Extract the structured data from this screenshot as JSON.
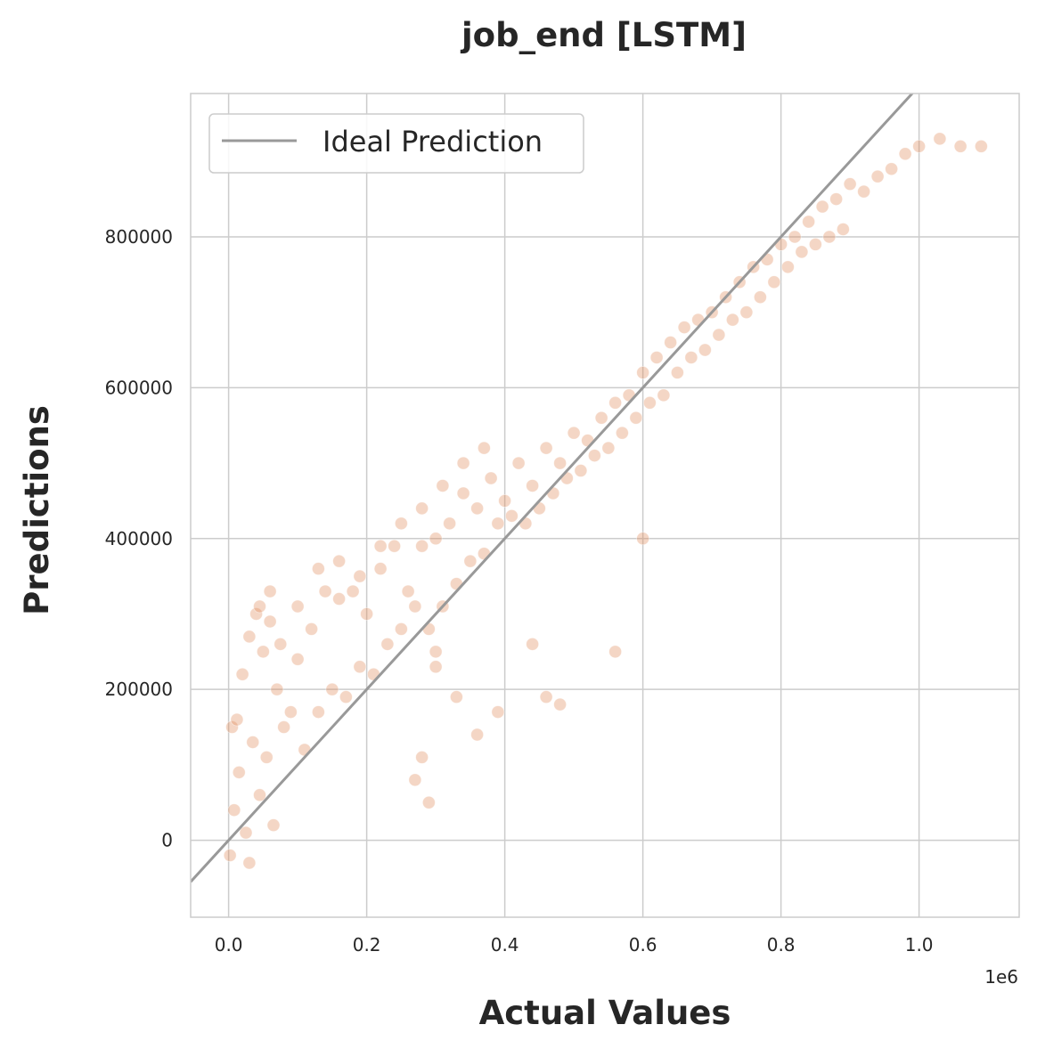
{
  "chart_data": {
    "type": "scatter",
    "title": "job_end [LSTM]",
    "xlabel": "Actual Values",
    "ylabel": "Predictions",
    "x_offset_label": "1e6",
    "xlim": [
      -55000,
      1145000
    ],
    "ylim": [
      -102000,
      990000
    ],
    "x_ticks": [
      0,
      200000,
      400000,
      600000,
      800000,
      1000000
    ],
    "x_tick_labels": [
      "0.0",
      "0.2",
      "0.4",
      "0.6",
      "0.8",
      "1.0"
    ],
    "y_ticks": [
      0,
      200000,
      400000,
      600000,
      800000
    ],
    "y_tick_labels": [
      "0",
      "200000",
      "400000",
      "600000",
      "800000"
    ],
    "grid": true,
    "legend": {
      "position": "top-left",
      "entries": [
        "Ideal Prediction"
      ]
    },
    "colors": {
      "points": "#e08a5a",
      "ideal_line": "#999999",
      "grid": "#cccccc",
      "spine": "#cccccc"
    },
    "series": [
      {
        "name": "Ideal Prediction",
        "kind": "line",
        "x": [
          -55000,
          1145000
        ],
        "y": [
          -55000,
          1145000
        ]
      },
      {
        "name": "predictions",
        "kind": "scatter",
        "x": [
          2000,
          5000,
          8000,
          12000,
          15000,
          20000,
          25000,
          30000,
          35000,
          40000,
          45000,
          50000,
          55000,
          60000,
          65000,
          70000,
          80000,
          90000,
          100000,
          110000,
          120000,
          130000,
          140000,
          150000,
          160000,
          170000,
          180000,
          190000,
          200000,
          210000,
          220000,
          230000,
          240000,
          250000,
          260000,
          270000,
          280000,
          290000,
          300000,
          310000,
          320000,
          330000,
          340000,
          350000,
          360000,
          370000,
          380000,
          390000,
          400000,
          410000,
          420000,
          430000,
          440000,
          450000,
          460000,
          470000,
          480000,
          490000,
          500000,
          510000,
          520000,
          530000,
          540000,
          550000,
          560000,
          570000,
          580000,
          590000,
          600000,
          610000,
          620000,
          630000,
          640000,
          650000,
          660000,
          670000,
          680000,
          690000,
          700000,
          710000,
          720000,
          730000,
          740000,
          750000,
          760000,
          770000,
          780000,
          790000,
          800000,
          810000,
          820000,
          830000,
          840000,
          850000,
          860000,
          870000,
          880000,
          890000,
          900000,
          920000,
          940000,
          960000,
          980000,
          1000000,
          1030000,
          1060000,
          1090000,
          30000,
          45000,
          60000,
          75000,
          100000,
          130000,
          160000,
          190000,
          220000,
          250000,
          280000,
          310000,
          340000,
          370000,
          300000,
          330000,
          360000,
          280000,
          270000,
          440000,
          480000,
          560000,
          600000,
          460000,
          390000,
          300000,
          290000
        ],
        "y": [
          -20000,
          150000,
          40000,
          160000,
          90000,
          220000,
          10000,
          270000,
          130000,
          300000,
          60000,
          250000,
          110000,
          290000,
          20000,
          200000,
          150000,
          170000,
          240000,
          120000,
          280000,
          170000,
          330000,
          200000,
          320000,
          190000,
          330000,
          230000,
          300000,
          220000,
          360000,
          260000,
          390000,
          280000,
          330000,
          310000,
          390000,
          280000,
          400000,
          310000,
          420000,
          340000,
          460000,
          370000,
          440000,
          380000,
          480000,
          420000,
          450000,
          430000,
          500000,
          420000,
          470000,
          440000,
          520000,
          460000,
          500000,
          480000,
          540000,
          490000,
          530000,
          510000,
          560000,
          520000,
          580000,
          540000,
          590000,
          560000,
          620000,
          580000,
          640000,
          590000,
          660000,
          620000,
          680000,
          640000,
          690000,
          650000,
          700000,
          670000,
          720000,
          690000,
          740000,
          700000,
          760000,
          720000,
          770000,
          740000,
          790000,
          760000,
          800000,
          780000,
          820000,
          790000,
          840000,
          800000,
          850000,
          810000,
          870000,
          860000,
          880000,
          890000,
          910000,
          920000,
          930000,
          920000,
          920000,
          -30000,
          310000,
          330000,
          260000,
          310000,
          360000,
          370000,
          350000,
          390000,
          420000,
          440000,
          470000,
          500000,
          520000,
          230000,
          190000,
          140000,
          110000,
          80000,
          260000,
          180000,
          250000,
          400000,
          190000,
          170000,
          250000,
          50000
        ]
      }
    ]
  }
}
